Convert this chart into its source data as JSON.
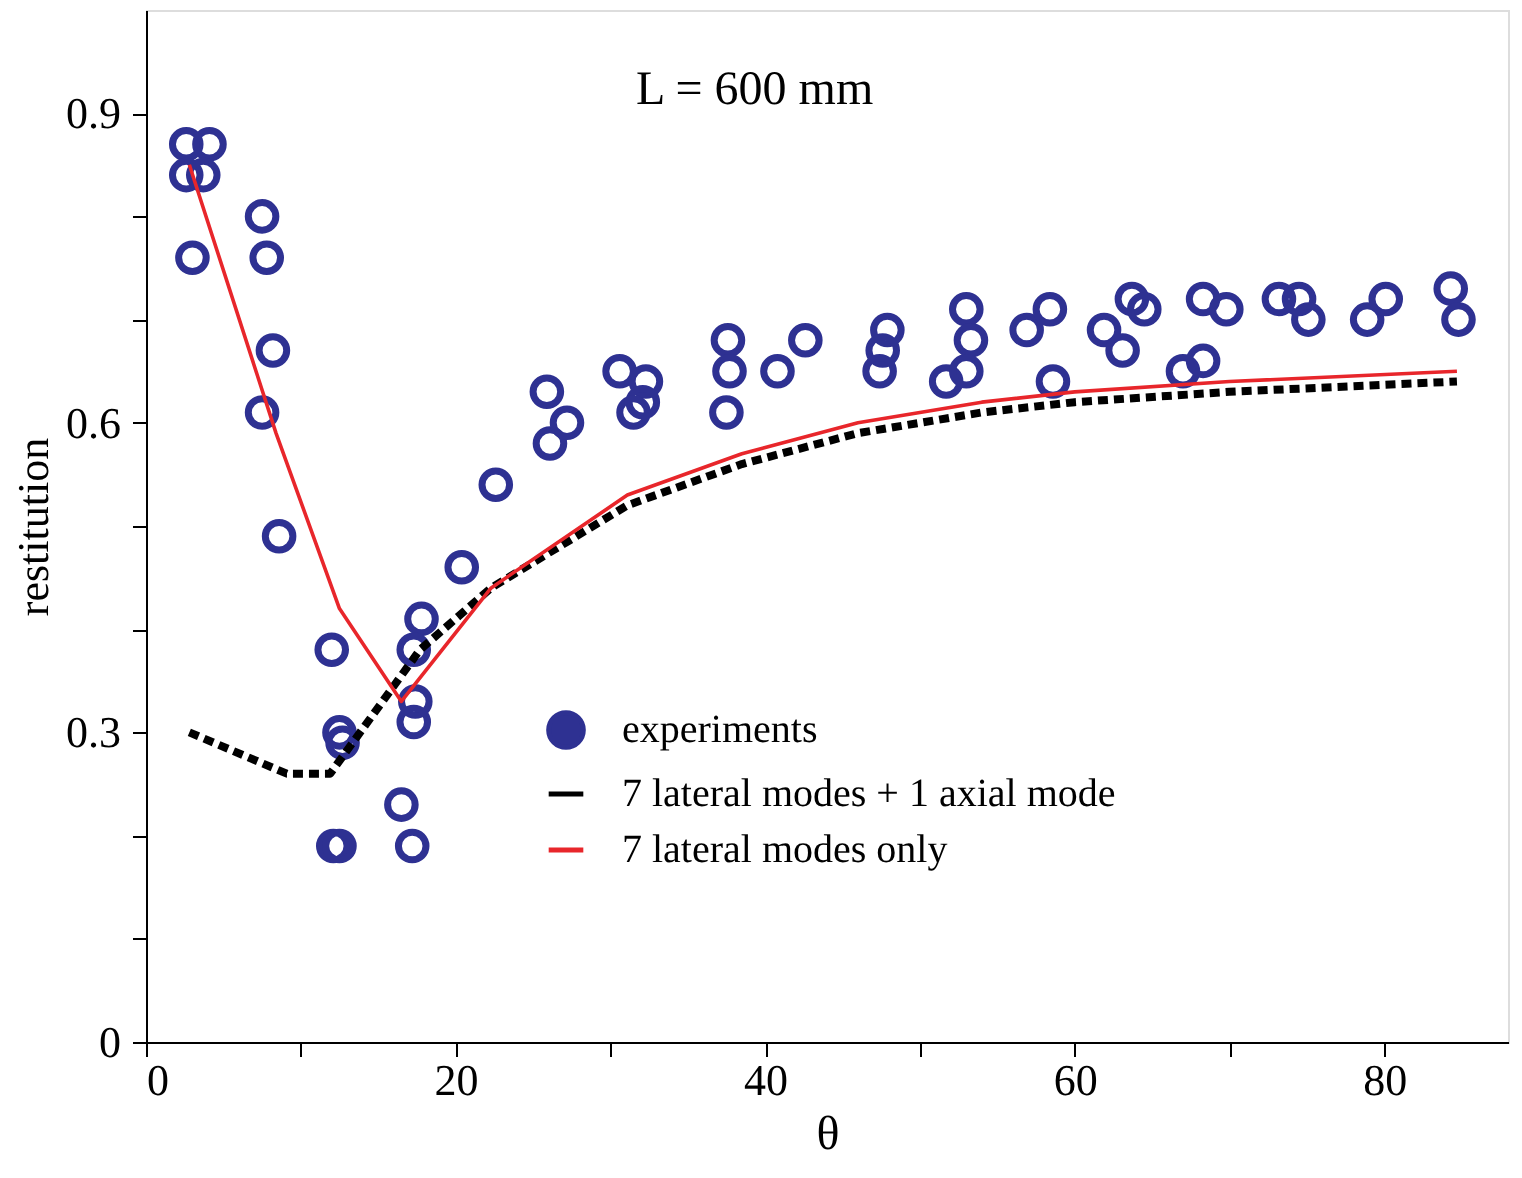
{
  "chart_data": {
    "type": "scatter",
    "xlabel": "θ",
    "ylabel": "restitution",
    "annotations": [
      "L = 600 mm"
    ],
    "xlim": [
      0,
      88
    ],
    "ylim": [
      0,
      1
    ],
    "xticks": [
      0,
      {
        "value": 10,
        "label": null
      },
      20,
      {
        "value": 30,
        "label": null
      },
      40,
      {
        "value": 50,
        "label": null
      },
      60,
      {
        "value": 70,
        "label": null
      },
      80
    ],
    "yticks": [
      0,
      {
        "value": 0.1,
        "label": null
      },
      {
        "value": 0.2,
        "label": null
      },
      0.3,
      {
        "value": 0.4,
        "label": null
      },
      {
        "value": 0.5,
        "label": null
      },
      0.6,
      {
        "value": 0.7,
        "label": null
      },
      {
        "value": 0.8,
        "label": null
      },
      0.9
    ],
    "grid": false,
    "legend": "bottom right",
    "series": [
      {
        "name": "experiments",
        "marker": "circle",
        "color": "#2e3192",
        "x": [
          2.6,
          4.1,
          2.6,
          3.7,
          3.0,
          7.5,
          7.8,
          8.2,
          7.5,
          8.6,
          12.0,
          12.5,
          12.7,
          12.1,
          12.5,
          16.5,
          17.2,
          17.8,
          17.3,
          17.4,
          17.3,
          20.4,
          22.6,
          25.9,
          26.1,
          27.2,
          30.6,
          32.3,
          32.1,
          31.5,
          37.6,
          37.7,
          37.5,
          40.8,
          42.6,
          47.9,
          47.6,
          47.4,
          53.0,
          53.3,
          51.7,
          53.0,
          56.9,
          58.4,
          58.6,
          61.9,
          63.1,
          63.7,
          64.5,
          67.0,
          68.3,
          68.3,
          69.8,
          73.2,
          74.5,
          75.1,
          78.9,
          80.1,
          84.3,
          84.8
        ],
        "values": [
          0.87,
          0.87,
          0.84,
          0.84,
          0.76,
          0.8,
          0.76,
          0.67,
          0.61,
          0.49,
          0.38,
          0.3,
          0.29,
          0.19,
          0.19,
          0.23,
          0.19,
          0.41,
          0.38,
          0.33,
          0.31,
          0.46,
          0.54,
          0.63,
          0.58,
          0.6,
          0.65,
          0.64,
          0.62,
          0.61,
          0.68,
          0.65,
          0.61,
          0.65,
          0.68,
          0.69,
          0.67,
          0.65,
          0.71,
          0.68,
          0.64,
          0.65,
          0.69,
          0.71,
          0.64,
          0.69,
          0.67,
          0.72,
          0.71,
          0.65,
          0.66,
          0.72,
          0.71,
          0.72,
          0.72,
          0.7,
          0.7,
          0.72,
          0.73,
          0.7
        ]
      },
      {
        "name": "7 lateral modes + 1 axial mode",
        "type": "line",
        "line_style": "dashed",
        "color": "#000000",
        "x": [
          2.8,
          9.1,
          11.9,
          17.7,
          22.3,
          31.1,
          38.5,
          46,
          54,
          60,
          70,
          84.7
        ],
        "values": [
          0.3,
          0.26,
          0.26,
          0.38,
          0.44,
          0.52,
          0.56,
          0.59,
          0.61,
          0.62,
          0.63,
          0.64
        ]
      },
      {
        "name": "7 lateral modes only",
        "type": "line",
        "line_style": "solid",
        "color": "#e8262b",
        "x": [
          2.8,
          8.4,
          12.5,
          16.5,
          22.3,
          31.1,
          38.5,
          46,
          54,
          60,
          70,
          84.7
        ],
        "values": [
          0.85,
          0.59,
          0.42,
          0.33,
          0.44,
          0.53,
          0.57,
          0.6,
          0.62,
          0.63,
          0.64,
          0.65
        ]
      }
    ]
  }
}
